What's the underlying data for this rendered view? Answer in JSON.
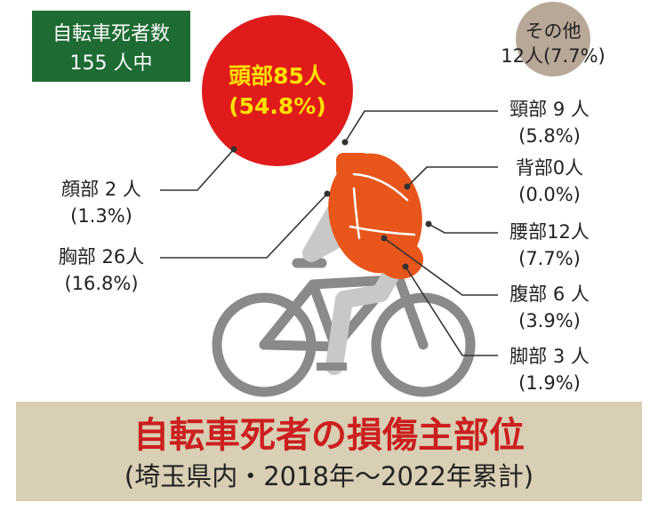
{
  "summary": {
    "line1": "自転車死者数",
    "line2": "155 人中"
  },
  "head": {
    "line1": "頭部85人",
    "line2": "(54.8%)"
  },
  "other": {
    "line1": "その他",
    "line2": "12人(7.7%)"
  },
  "labels": [
    {
      "key": "neck",
      "line1": "頸部 9 人",
      "line2": "(5.8%)"
    },
    {
      "key": "back",
      "line1": "背部0人",
      "line2": "(0.0%)"
    },
    {
      "key": "waist",
      "line1": "腰部12人",
      "line2": "(7.7%)"
    },
    {
      "key": "abdomen",
      "line1": "腹部 6 人",
      "line2": "(3.9%)"
    },
    {
      "key": "legs",
      "line1": "脚部 3 人",
      "line2": "(1.9%)"
    },
    {
      "key": "face",
      "line1": "顔部 2 人",
      "line2": "(1.3%)"
    },
    {
      "key": "chest",
      "line1": "胸部 26人",
      "line2": "(16.8%)"
    }
  ],
  "title": {
    "main": "自転車死者の損傷主部位",
    "sub": "(埼玉県内・2018年〜2022年累計)"
  },
  "colors": {
    "summary_box": "#1e6b33",
    "head_circle": "#e01b1b",
    "other_circle": "#b8a898",
    "torso": "#e8561b",
    "limb": "#c8c8c8",
    "bicycle": "#8a8a8a",
    "title_band": "#d8cfb4",
    "title_red": "#cc1f1f"
  }
}
